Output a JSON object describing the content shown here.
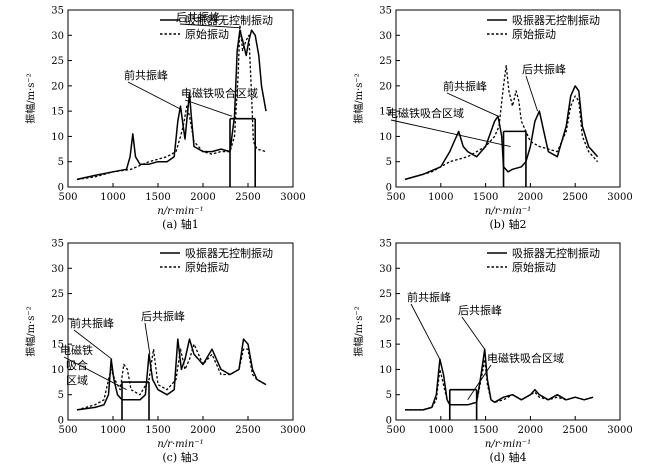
{
  "chart_data": [
    {
      "type": "line",
      "caption": "(a) 轴1",
      "xlabel": "n/r·min⁻¹",
      "ylabel": "振幅/m·s⁻²",
      "xlim": [
        500,
        3000
      ],
      "ylim": [
        0,
        35
      ],
      "xticks": [
        "500",
        "1000",
        "1500",
        "2000",
        "2500",
        "3000"
      ],
      "yticks": [
        "0",
        "5",
        "10",
        "15",
        "20",
        "25",
        "30",
        "35"
      ],
      "legend": [
        "吸振器无控制振动",
        "原始振动"
      ],
      "annotations": [
        "后共振峰",
        "前共振峰",
        "电磁铁吸合区域"
      ],
      "absorption_region": [
        2300,
        2580
      ],
      "series": [
        {
          "name": "吸振器无控制振动",
          "style": "solid",
          "points": [
            [
              600,
              1.5
            ],
            [
              800,
              2.3
            ],
            [
              1000,
              3
            ],
            [
              1150,
              3.5
            ],
            [
              1190,
              6
            ],
            [
              1220,
              10.5
            ],
            [
              1250,
              6
            ],
            [
              1300,
              4.5
            ],
            [
              1400,
              4.5
            ],
            [
              1500,
              5
            ],
            [
              1600,
              5
            ],
            [
              1680,
              6
            ],
            [
              1720,
              13
            ],
            [
              1750,
              16
            ],
            [
              1780,
              12
            ],
            [
              1800,
              9.5
            ],
            [
              1830,
              15
            ],
            [
              1850,
              18.5
            ],
            [
              1870,
              14
            ],
            [
              1900,
              8
            ],
            [
              2000,
              7
            ],
            [
              2100,
              7
            ],
            [
              2200,
              7.5
            ],
            [
              2300,
              7
            ],
            [
              2350,
              14
            ],
            [
              2380,
              27
            ],
            [
              2410,
              31
            ],
            [
              2440,
              29
            ],
            [
              2480,
              26
            ],
            [
              2510,
              29
            ],
            [
              2540,
              31
            ],
            [
              2580,
              30
            ],
            [
              2620,
              26
            ],
            [
              2650,
              20
            ],
            [
              2680,
              17
            ],
            [
              2700,
              15
            ]
          ]
        },
        {
          "name": "原始振动",
          "style": "dashed",
          "points": [
            [
              600,
              1.5
            ],
            [
              800,
              2
            ],
            [
              1000,
              3
            ],
            [
              1200,
              3.5
            ],
            [
              1400,
              5
            ],
            [
              1600,
              6
            ],
            [
              1700,
              7
            ],
            [
              1750,
              10
            ],
            [
              1780,
              12
            ],
            [
              1820,
              16
            ],
            [
              1850,
              14
            ],
            [
              1900,
              9
            ],
            [
              2000,
              7
            ],
            [
              2100,
              6.5
            ],
            [
              2200,
              7
            ],
            [
              2300,
              7
            ],
            [
              2350,
              10
            ],
            [
              2390,
              22
            ],
            [
              2410,
              32
            ],
            [
              2440,
              27
            ],
            [
              2480,
              29
            ],
            [
              2510,
              30
            ],
            [
              2540,
              18
            ],
            [
              2560,
              9
            ],
            [
              2600,
              7.5
            ],
            [
              2700,
              7
            ]
          ]
        }
      ]
    },
    {
      "type": "line",
      "caption": "(b) 轴2",
      "xlabel": "n/r·min⁻¹",
      "ylabel": "振幅/m·s⁻²",
      "xlim": [
        500,
        3000
      ],
      "ylim": [
        0,
        35
      ],
      "xticks": [
        "500",
        "1000",
        "1500",
        "2000",
        "2500",
        "3000"
      ],
      "yticks": [
        "0",
        "5",
        "10",
        "15",
        "20",
        "25",
        "30",
        "35"
      ],
      "legend": [
        "吸振器无控制振动",
        "原始振动"
      ],
      "annotations": [
        "前共振峰",
        "后共振峰",
        "电磁铁吸合区域"
      ],
      "absorption_region": [
        1700,
        1950
      ],
      "series": [
        {
          "name": "吸振器无控制振动",
          "style": "solid",
          "points": [
            [
              600,
              1.5
            ],
            [
              800,
              2.5
            ],
            [
              1000,
              4
            ],
            [
              1100,
              7
            ],
            [
              1150,
              9
            ],
            [
              1200,
              11
            ],
            [
              1250,
              8
            ],
            [
              1300,
              7
            ],
            [
              1400,
              6
            ],
            [
              1500,
              8
            ],
            [
              1600,
              13
            ],
            [
              1640,
              14
            ],
            [
              1680,
              10
            ],
            [
              1700,
              4
            ],
            [
              1750,
              3
            ],
            [
              1800,
              3.5
            ],
            [
              1900,
              4
            ],
            [
              1950,
              5
            ],
            [
              2000,
              8
            ],
            [
              2050,
              13
            ],
            [
              2100,
              15
            ],
            [
              2150,
              11
            ],
            [
              2200,
              7
            ],
            [
              2300,
              6
            ],
            [
              2400,
              12
            ],
            [
              2450,
              18
            ],
            [
              2500,
              20
            ],
            [
              2540,
              19
            ],
            [
              2580,
              12
            ],
            [
              2650,
              8
            ],
            [
              2750,
              6
            ]
          ]
        },
        {
          "name": "原始振动",
          "style": "dashed",
          "points": [
            [
              600,
              1.5
            ],
            [
              900,
              3
            ],
            [
              1100,
              5
            ],
            [
              1300,
              6
            ],
            [
              1500,
              8
            ],
            [
              1600,
              10
            ],
            [
              1650,
              12
            ],
            [
              1700,
              20
            ],
            [
              1730,
              24
            ],
            [
              1760,
              19
            ],
            [
              1800,
              16
            ],
            [
              1840,
              19
            ],
            [
              1870,
              17
            ],
            [
              1900,
              13
            ],
            [
              1950,
              11
            ],
            [
              2000,
              9
            ],
            [
              2100,
              8
            ],
            [
              2300,
              7
            ],
            [
              2400,
              11
            ],
            [
              2450,
              16
            ],
            [
              2500,
              18
            ],
            [
              2540,
              17
            ],
            [
              2580,
              10
            ],
            [
              2650,
              7
            ],
            [
              2750,
              5
            ]
          ]
        }
      ]
    },
    {
      "type": "line",
      "caption": "(c) 轴3",
      "xlabel": "n/r·min⁻¹",
      "ylabel": "振幅/m·s⁻²",
      "xlim": [
        500,
        3000
      ],
      "ylim": [
        0,
        35
      ],
      "xticks": [
        "500",
        "1000",
        "1500",
        "2000",
        "2500",
        "3000"
      ],
      "yticks": [
        "0",
        "5",
        "10",
        "15",
        "20",
        "25",
        "30",
        "35"
      ],
      "legend": [
        "吸振器无控制振动",
        "原始振动"
      ],
      "annotations": [
        "前共振峰",
        "后共振峰",
        "电磁铁",
        "吸合",
        "区域"
      ],
      "absorption_region": [
        1100,
        1400
      ],
      "series": [
        {
          "name": "吸振器无控制振动",
          "style": "solid",
          "points": [
            [
              600,
              2
            ],
            [
              800,
              2.5
            ],
            [
              900,
              3
            ],
            [
              950,
              5
            ],
            [
              980,
              12
            ],
            [
              1010,
              8
            ],
            [
              1050,
              5
            ],
            [
              1100,
              4
            ],
            [
              1200,
              4
            ],
            [
              1300,
              4
            ],
            [
              1360,
              5
            ],
            [
              1400,
              13
            ],
            [
              1440,
              8
            ],
            [
              1500,
              6
            ],
            [
              1600,
              5
            ],
            [
              1680,
              6
            ],
            [
              1720,
              16
            ],
            [
              1760,
              10
            ],
            [
              1800,
              12
            ],
            [
              1850,
              16
            ],
            [
              1900,
              13
            ],
            [
              2000,
              11
            ],
            [
              2100,
              14
            ],
            [
              2200,
              10
            ],
            [
              2300,
              9
            ],
            [
              2400,
              10
            ],
            [
              2450,
              16
            ],
            [
              2500,
              15
            ],
            [
              2550,
              10
            ],
            [
              2600,
              8
            ],
            [
              2700,
              7
            ]
          ]
        },
        {
          "name": "原始振动",
          "style": "dashed",
          "points": [
            [
              600,
              2
            ],
            [
              800,
              3
            ],
            [
              900,
              4
            ],
            [
              950,
              8
            ],
            [
              980,
              10
            ],
            [
              1020,
              8
            ],
            [
              1080,
              6
            ],
            [
              1120,
              11
            ],
            [
              1160,
              10
            ],
            [
              1200,
              6
            ],
            [
              1300,
              5
            ],
            [
              1400,
              8
            ],
            [
              1450,
              14
            ],
            [
              1500,
              7
            ],
            [
              1600,
              6
            ],
            [
              1700,
              8
            ],
            [
              1750,
              14
            ],
            [
              1800,
              10
            ],
            [
              1850,
              12
            ],
            [
              1900,
              15
            ],
            [
              2000,
              11
            ],
            [
              2100,
              13
            ],
            [
              2200,
              9
            ],
            [
              2300,
              9
            ],
            [
              2400,
              10
            ],
            [
              2450,
              14
            ],
            [
              2500,
              14
            ],
            [
              2550,
              9
            ],
            [
              2600,
              8
            ],
            [
              2700,
              7
            ]
          ]
        }
      ]
    },
    {
      "type": "line",
      "caption": "(d) 轴4",
      "xlabel": "n/r·min⁻¹",
      "ylabel": "振幅/m·s⁻²",
      "xlim": [
        500,
        3000
      ],
      "ylim": [
        0,
        35
      ],
      "xticks": [
        "500",
        "1000",
        "1500",
        "2000",
        "2500",
        "3000"
      ],
      "yticks": [
        "0",
        "5",
        "10",
        "15",
        "20",
        "25",
        "30",
        "35"
      ],
      "legend": [
        "吸振器无控制振动",
        "原始振动"
      ],
      "annotations": [
        "前共振峰",
        "后共振峰",
        "电磁铁吸合区域"
      ],
      "absorption_region": [
        1100,
        1400
      ],
      "series": [
        {
          "name": "吸振器无控制振动",
          "style": "solid",
          "points": [
            [
              600,
              2
            ],
            [
              800,
              2
            ],
            [
              900,
              2.5
            ],
            [
              950,
              5
            ],
            [
              990,
              12
            ],
            [
              1030,
              9
            ],
            [
              1070,
              4
            ],
            [
              1100,
              3
            ],
            [
              1200,
              3
            ],
            [
              1300,
              3
            ],
            [
              1400,
              3.5
            ],
            [
              1450,
              9
            ],
            [
              1490,
              14
            ],
            [
              1520,
              8
            ],
            [
              1560,
              4
            ],
            [
              1600,
              3.5
            ],
            [
              1700,
              4.5
            ],
            [
              1800,
              5
            ],
            [
              1900,
              4
            ],
            [
              2000,
              5
            ],
            [
              2050,
              6
            ],
            [
              2100,
              5
            ],
            [
              2200,
              4
            ],
            [
              2300,
              5
            ],
            [
              2400,
              4
            ],
            [
              2500,
              4.5
            ],
            [
              2600,
              4
            ],
            [
              2700,
              4.5
            ]
          ]
        },
        {
          "name": "原始振动",
          "style": "dashed",
          "points": [
            [
              600,
              2
            ],
            [
              800,
              2
            ],
            [
              900,
              2.5
            ],
            [
              950,
              4
            ],
            [
              990,
              10
            ],
            [
              1030,
              7
            ],
            [
              1070,
              4
            ],
            [
              1100,
              3
            ],
            [
              1200,
              3
            ],
            [
              1300,
              3
            ],
            [
              1400,
              3.5
            ],
            [
              1450,
              8
            ],
            [
              1490,
              12
            ],
            [
              1520,
              7
            ],
            [
              1560,
              4
            ],
            [
              1600,
              3.5
            ],
            [
              1700,
              4
            ],
            [
              1800,
              5
            ],
            [
              1900,
              4
            ],
            [
              2000,
              5
            ],
            [
              2050,
              5.5
            ],
            [
              2100,
              4.5
            ],
            [
              2200,
              4
            ],
            [
              2300,
              4.5
            ],
            [
              2400,
              4
            ],
            [
              2500,
              4.5
            ],
            [
              2600,
              4
            ],
            [
              2700,
              4.5
            ]
          ]
        }
      ]
    }
  ]
}
